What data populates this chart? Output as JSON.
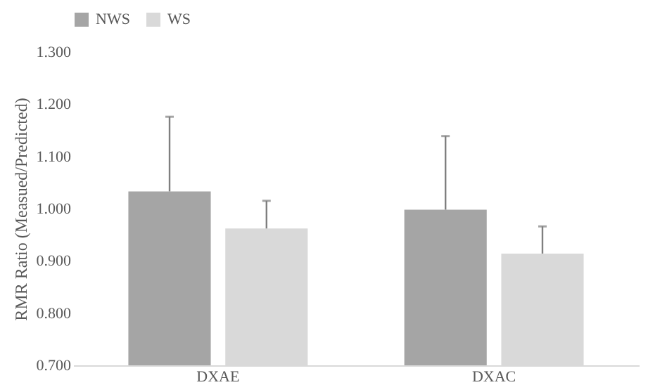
{
  "chart_data": {
    "type": "bar",
    "ylabel": "RMR Ratio (Measued/Predicted)",
    "categories": [
      "DXAE",
      "DXAC"
    ],
    "series": [
      {
        "name": "NWS",
        "color": "#a5a5a5",
        "values": [
          1.033,
          0.998
        ],
        "errors": [
          [
            1.033,
            1.176
          ],
          [
            0.998,
            1.139
          ]
        ]
      },
      {
        "name": "WS",
        "color": "#d9d9d9",
        "values": [
          0.962,
          0.914
        ],
        "errors": [
          [
            0.962,
            1.015
          ],
          [
            0.914,
            0.966
          ]
        ]
      }
    ],
    "ylim": [
      0.7,
      1.3
    ],
    "yticks": [
      {
        "value": 0.7,
        "label": "0.700"
      },
      {
        "value": 0.8,
        "label": "0.800"
      },
      {
        "value": 0.9,
        "label": "0.900"
      },
      {
        "value": 1.0,
        "label": "1.000"
      },
      {
        "value": 1.1,
        "label": "1.100"
      },
      {
        "value": 1.2,
        "label": "1.200"
      },
      {
        "value": 1.3,
        "label": "1.300"
      }
    ],
    "grid": false,
    "legend": "top"
  }
}
